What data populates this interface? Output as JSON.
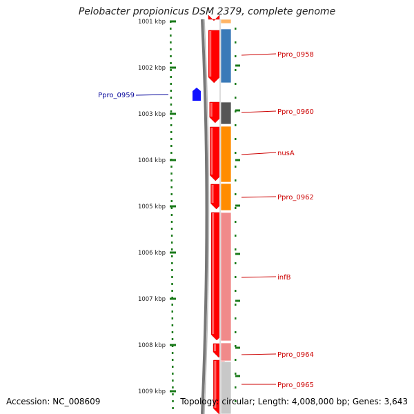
{
  "header": {
    "title": "Pelobacter propionicus DSM 2379, complete genome"
  },
  "footer": {
    "accession": "Accession: NC_008609",
    "info": "Topology: circular; Length: 4,008,000 bp; Genes: 3,643"
  },
  "scale": {
    "labels": [
      "1001 kbp",
      "1002 kbp",
      "1003 kbp",
      "1004 kbp",
      "1005 kbp",
      "1006 kbp",
      "1007 kbp",
      "1008 kbp",
      "1009 kbp"
    ],
    "color": "#1a7a1a"
  },
  "genes": [
    {
      "name": "Ppro_0958",
      "strand": "+",
      "color": "#3a7ab8"
    },
    {
      "name": "Ppro_0959",
      "strand": "-",
      "color": "#1010ff"
    },
    {
      "name": "Ppro_0960",
      "strand": "+",
      "color": "#555555"
    },
    {
      "name": "nusA",
      "strand": "+",
      "color": "#ff8c00"
    },
    {
      "name": "Ppro_0962",
      "strand": "+",
      "color": "#ff8c00"
    },
    {
      "name": "infB",
      "strand": "+",
      "color": "#f08a8a"
    },
    {
      "name": "Ppro_0964",
      "strand": "+",
      "color": "#f08a8a"
    },
    {
      "name": "Ppro_0965",
      "strand": "+",
      "color": "#c8c8c8"
    }
  ],
  "colors": {
    "forward_label": "#cc0000",
    "reverse_label": "#000099",
    "cds": "#ff0000",
    "backbone": "#777777"
  }
}
